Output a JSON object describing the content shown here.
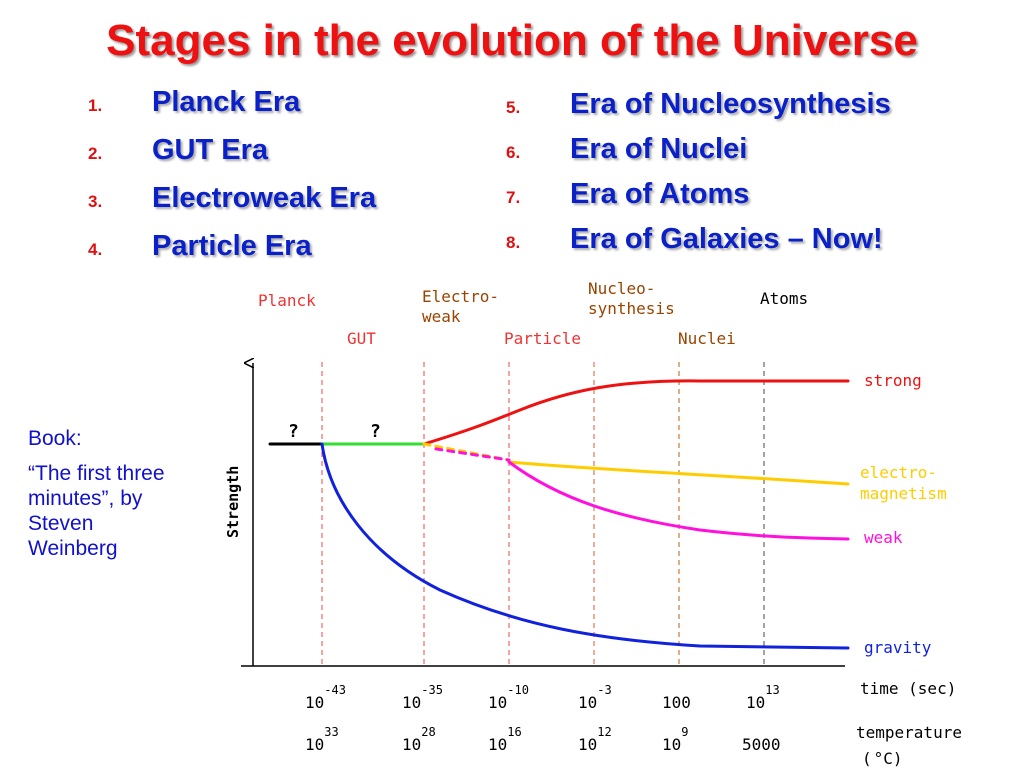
{
  "title": "Stages in the evolution of the Universe",
  "eras_left": [
    {
      "num": "1.",
      "label": "Planck Era"
    },
    {
      "num": "2.",
      "label": "GUT Era"
    },
    {
      "num": "3.",
      "label": "Electroweak Era"
    },
    {
      "num": "4.",
      "label": "Particle Era"
    }
  ],
  "eras_right": [
    {
      "num": "5.",
      "label": "Era of Nucleosynthesis"
    },
    {
      "num": "6.",
      "label": "Era of Nuclei"
    },
    {
      "num": "7.",
      "label": "Era of Atoms"
    },
    {
      "num": "8.",
      "label": "Era of Galaxies – Now!"
    }
  ],
  "book": {
    "heading": "Book:",
    "text": "“The first three minutes”, by Steven Weinberg"
  },
  "diagram": {
    "era_labels": {
      "planck": "Planck",
      "gut": "GUT",
      "electroweak_1": "Electro-",
      "electroweak_2": "weak",
      "particle": "Particle",
      "nucleosynthesis_1": "Nucleo-",
      "nucleosynthesis_2": "synthesis",
      "nuclei": "Nuclei",
      "atoms": "Atoms"
    },
    "y_axis_label": "Strength",
    "unknown_1": "?",
    "unknown_2": "?",
    "forces": {
      "strong": "strong",
      "em_1": "electro-",
      "em_2": "magnetism",
      "weak": "weak",
      "gravity": "gravity"
    },
    "time": {
      "label": "time (sec)",
      "ticks": [
        {
          "base": "10",
          "exp": "-43"
        },
        {
          "base": "10",
          "exp": "-35"
        },
        {
          "base": "10",
          "exp": "-10"
        },
        {
          "base": "10",
          "exp": "-3"
        },
        {
          "base": "100",
          "exp": ""
        },
        {
          "base": "10",
          "exp": "13"
        }
      ]
    },
    "temperature": {
      "label_1": "temperature",
      "label_2": "(",
      "unit": "°C",
      "label_3": ")",
      "ticks": [
        {
          "base": "10",
          "exp": "33"
        },
        {
          "base": "10",
          "exp": "28"
        },
        {
          "base": "10",
          "exp": "16"
        },
        {
          "base": "10",
          "exp": "12"
        },
        {
          "base": "10",
          "exp": "9"
        },
        {
          "base": "5000",
          "exp": ""
        }
      ]
    },
    "colors": {
      "title": "#ee1111",
      "era_red": "#ee3333",
      "era_brown": "#994400",
      "strong": "#ee1111",
      "electromagnetism": "#ffcc00",
      "weak": "#ff11dd",
      "gravity": "#1122dd",
      "unified_gut": "#33dd33"
    }
  }
}
